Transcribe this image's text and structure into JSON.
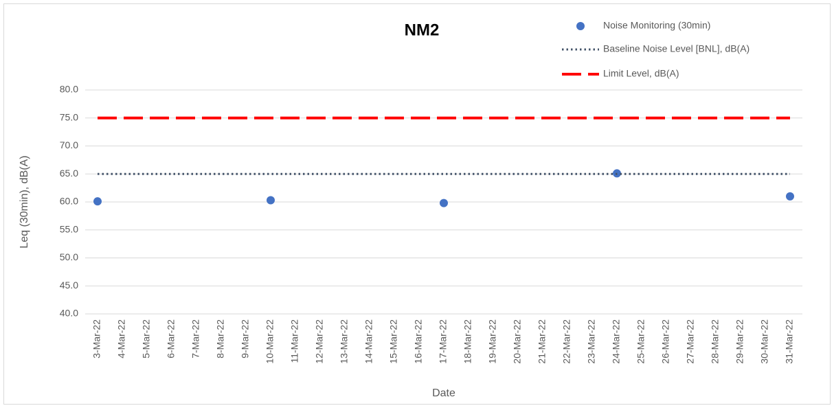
{
  "chart_data": {
    "type": "line",
    "title": "NM2",
    "x_label": "Date",
    "y_label": "Leq (30min), dB(A)",
    "categories": [
      "3-Mar-22",
      "4-Mar-22",
      "5-Mar-22",
      "6-Mar-22",
      "7-Mar-22",
      "8-Mar-22",
      "9-Mar-22",
      "10-Mar-22",
      "11-Mar-22",
      "12-Mar-22",
      "13-Mar-22",
      "14-Mar-22",
      "15-Mar-22",
      "16-Mar-22",
      "17-Mar-22",
      "18-Mar-22",
      "19-Mar-22",
      "20-Mar-22",
      "21-Mar-22",
      "22-Mar-22",
      "23-Mar-22",
      "24-Mar-22",
      "25-Mar-22",
      "26-Mar-22",
      "27-Mar-22",
      "28-Mar-22",
      "29-Mar-22",
      "30-Mar-22",
      "31-Mar-22"
    ],
    "series": [
      {
        "name": "Noise Monitoring (30min)",
        "color": "#4472c4",
        "style": "marker",
        "values": [
          60.1,
          null,
          null,
          null,
          null,
          null,
          null,
          60.3,
          null,
          null,
          null,
          null,
          null,
          null,
          59.8,
          null,
          null,
          null,
          null,
          null,
          null,
          65.1,
          null,
          null,
          null,
          null,
          null,
          null,
          61.0
        ]
      },
      {
        "name": "Baseline Noise Level [BNL], dB(A)",
        "color": "#44546a",
        "style": "dotted",
        "values": [
          65,
          65,
          65,
          65,
          65,
          65,
          65,
          65,
          65,
          65,
          65,
          65,
          65,
          65,
          65,
          65,
          65,
          65,
          65,
          65,
          65,
          65,
          65,
          65,
          65,
          65,
          65,
          65,
          65
        ]
      },
      {
        "name": "Limit Level, dB(A)",
        "color": "#ff0000",
        "style": "dashed",
        "values": [
          75,
          75,
          75,
          75,
          75,
          75,
          75,
          75,
          75,
          75,
          75,
          75,
          75,
          75,
          75,
          75,
          75,
          75,
          75,
          75,
          75,
          75,
          75,
          75,
          75,
          75,
          75,
          75,
          75
        ]
      }
    ],
    "ylim": [
      40,
      80
    ],
    "yticks": [
      {
        "value": 40,
        "label": "40.0"
      },
      {
        "value": 45,
        "label": "45.0"
      },
      {
        "value": 50,
        "label": "50.0"
      },
      {
        "value": 55,
        "label": "55.0"
      },
      {
        "value": 60,
        "label": "60.0"
      },
      {
        "value": 65,
        "label": "65.0"
      },
      {
        "value": 70,
        "label": "70.0"
      },
      {
        "value": 75,
        "label": "75.0"
      },
      {
        "value": 80,
        "label": "80.0"
      }
    ],
    "grid": true,
    "legend": "top-right"
  }
}
